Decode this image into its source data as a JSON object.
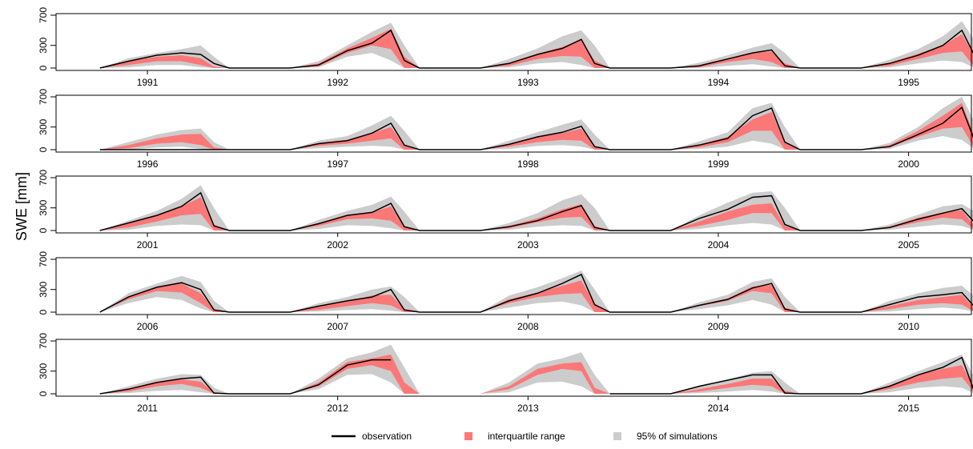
{
  "ylabel": "SWE [mm]",
  "legend": [
    {
      "name": "observation",
      "color": "#000000"
    },
    {
      "name": "interquartile range",
      "color": "#fc7777"
    },
    {
      "name": "95% of simulations",
      "color": "#cccccc"
    }
  ],
  "chart_data": [
    {
      "type": "area",
      "xlim": [
        1990.52,
        1995.33
      ],
      "ylim": [
        0,
        700
      ],
      "yticks": [
        0,
        300,
        700
      ],
      "xticks": [
        1991,
        1992,
        1993,
        1994,
        1995
      ],
      "x": [
        1990.75,
        1990.9,
        1991.05,
        1991.18,
        1991.28,
        1991.35,
        1991.43,
        1991.75,
        1991.9,
        1992.05,
        1992.18,
        1992.28,
        1992.35,
        1992.43,
        1992.75,
        1992.9,
        1993.05,
        1993.18,
        1993.28,
        1993.35,
        1993.43,
        1993.75,
        1993.9,
        1994.05,
        1994.18,
        1994.28,
        1994.35,
        1994.43,
        1994.75,
        1994.9,
        1995.05,
        1995.18,
        1995.28,
        1995.35,
        1995.43
      ],
      "observation": [
        0,
        90,
        170,
        200,
        180,
        60,
        0,
        0,
        40,
        230,
        330,
        500,
        100,
        0,
        0,
        60,
        180,
        260,
        380,
        60,
        0,
        0,
        30,
        120,
        200,
        240,
        30,
        0,
        0,
        60,
        170,
        300,
        500,
        150,
        0
      ],
      "iqr": {
        "lower": [
          0,
          40,
          90,
          90,
          40,
          0,
          0,
          0,
          20,
          200,
          300,
          250,
          0,
          0,
          0,
          30,
          120,
          160,
          150,
          0,
          0,
          0,
          10,
          80,
          120,
          80,
          0,
          0,
          0,
          30,
          120,
          200,
          220,
          0,
          0
        ],
        "upper": [
          0,
          90,
          150,
          170,
          130,
          20,
          0,
          0,
          60,
          260,
          400,
          520,
          150,
          0,
          0,
          70,
          190,
          280,
          380,
          100,
          0,
          0,
          40,
          130,
          200,
          220,
          60,
          0,
          0,
          70,
          190,
          300,
          450,
          150,
          0
        ]
      },
      "p95": {
        "lower": [
          0,
          10,
          40,
          40,
          10,
          0,
          0,
          0,
          10,
          150,
          200,
          100,
          0,
          0,
          0,
          10,
          60,
          80,
          40,
          0,
          0,
          0,
          0,
          30,
          50,
          20,
          0,
          0,
          0,
          10,
          60,
          100,
          80,
          0,
          0
        ],
        "upper": [
          0,
          130,
          200,
          250,
          300,
          150,
          0,
          0,
          90,
          300,
          480,
          600,
          300,
          0,
          0,
          120,
          260,
          420,
          500,
          300,
          0,
          0,
          70,
          170,
          270,
          330,
          200,
          0,
          0,
          110,
          250,
          420,
          620,
          350,
          0
        ]
      }
    },
    {
      "type": "area",
      "xlim": [
        1995.52,
        2000.33
      ],
      "ylim": [
        0,
        700
      ],
      "yticks": [
        0,
        300,
        700
      ],
      "xticks": [
        1996,
        1997,
        1998,
        1999,
        2000
      ],
      "x": [
        1995.75,
        1995.9,
        1996.05,
        1996.18,
        1996.28,
        1996.35,
        1996.43,
        1996.75,
        1996.9,
        1997.05,
        1997.18,
        1997.28,
        1997.35,
        1997.43,
        1997.75,
        1997.9,
        1998.05,
        1998.18,
        1998.28,
        1998.35,
        1998.43,
        1998.75,
        1998.9,
        1999.05,
        1999.18,
        1999.28,
        1999.35,
        1999.43,
        1999.75,
        1999.9,
        2000.05,
        2000.18,
        2000.28,
        2000.35,
        2000.43
      ],
      "observation": [
        0,
        0,
        0,
        0,
        0,
        0,
        0,
        0,
        80,
        120,
        220,
        350,
        60,
        0,
        0,
        70,
        170,
        230,
        310,
        40,
        0,
        0,
        60,
        150,
        450,
        550,
        100,
        0,
        0,
        40,
        200,
        350,
        560,
        100,
        0
      ],
      "iqr": {
        "lower": [
          0,
          20,
          80,
          100,
          60,
          0,
          0,
          0,
          50,
          80,
          120,
          150,
          0,
          0,
          0,
          40,
          100,
          130,
          120,
          0,
          0,
          0,
          30,
          100,
          250,
          250,
          0,
          0,
          0,
          30,
          170,
          280,
          300,
          0,
          0
        ],
        "upper": [
          0,
          60,
          150,
          200,
          210,
          30,
          0,
          0,
          90,
          130,
          220,
          300,
          60,
          0,
          0,
          80,
          170,
          220,
          280,
          50,
          0,
          0,
          70,
          170,
          400,
          500,
          100,
          0,
          0,
          60,
          250,
          450,
          620,
          150,
          0
        ]
      },
      "p95": {
        "lower": [
          0,
          0,
          30,
          40,
          10,
          0,
          0,
          0,
          20,
          40,
          50,
          40,
          0,
          0,
          0,
          10,
          50,
          60,
          40,
          0,
          0,
          0,
          10,
          40,
          120,
          80,
          0,
          0,
          0,
          10,
          120,
          180,
          130,
          0,
          0
        ],
        "upper": [
          0,
          100,
          200,
          260,
          280,
          100,
          0,
          0,
          120,
          180,
          320,
          450,
          250,
          0,
          0,
          120,
          230,
          330,
          400,
          200,
          0,
          0,
          110,
          230,
          550,
          620,
          300,
          0,
          0,
          90,
          300,
          550,
          700,
          350,
          0
        ]
      }
    },
    {
      "type": "area",
      "xlim": [
        2000.52,
        2005.33
      ],
      "ylim": [
        0,
        700
      ],
      "yticks": [
        0,
        300,
        700
      ],
      "xticks": [
        2001,
        2002,
        2003,
        2004,
        2005
      ],
      "x": [
        2000.75,
        2000.9,
        2001.05,
        2001.18,
        2001.28,
        2001.35,
        2001.43,
        2001.75,
        2001.9,
        2002.05,
        2002.18,
        2002.28,
        2002.35,
        2002.43,
        2002.75,
        2002.9,
        2003.05,
        2003.18,
        2003.28,
        2003.35,
        2003.43,
        2003.75,
        2003.9,
        2004.05,
        2004.18,
        2004.28,
        2004.35,
        2004.43,
        2004.75,
        2004.9,
        2005.05,
        2005.18,
        2005.28,
        2005.35,
        2005.43
      ],
      "observation": [
        0,
        100,
        200,
        320,
        500,
        60,
        0,
        0,
        90,
        200,
        240,
        360,
        50,
        0,
        0,
        50,
        130,
        250,
        330,
        40,
        0,
        0,
        160,
        280,
        440,
        460,
        80,
        0,
        0,
        40,
        150,
        230,
        290,
        100,
        0
      ],
      "iqr": {
        "lower": [
          0,
          40,
          120,
          200,
          220,
          0,
          0,
          0,
          60,
          150,
          160,
          130,
          0,
          0,
          0,
          30,
          110,
          170,
          180,
          0,
          0,
          0,
          60,
          140,
          230,
          230,
          0,
          0,
          0,
          30,
          110,
          170,
          150,
          0,
          0
        ],
        "upper": [
          0,
          90,
          200,
          320,
          440,
          80,
          0,
          0,
          100,
          200,
          240,
          320,
          60,
          0,
          0,
          60,
          160,
          280,
          350,
          60,
          0,
          0,
          120,
          250,
          340,
          360,
          60,
          0,
          0,
          50,
          170,
          240,
          270,
          50,
          0
        ]
      },
      "p95": {
        "lower": [
          0,
          10,
          60,
          80,
          70,
          0,
          0,
          0,
          20,
          70,
          60,
          30,
          0,
          0,
          0,
          10,
          50,
          70,
          60,
          0,
          0,
          0,
          20,
          70,
          100,
          80,
          0,
          0,
          0,
          10,
          50,
          80,
          60,
          0,
          0
        ],
        "upper": [
          0,
          130,
          260,
          420,
          600,
          300,
          0,
          0,
          140,
          260,
          340,
          450,
          250,
          0,
          0,
          100,
          230,
          400,
          480,
          300,
          0,
          0,
          200,
          370,
          500,
          520,
          300,
          0,
          0,
          80,
          210,
          320,
          350,
          250,
          0
        ]
      }
    },
    {
      "type": "area",
      "xlim": [
        2005.52,
        2010.33
      ],
      "ylim": [
        0,
        700
      ],
      "yticks": [
        0,
        300,
        700
      ],
      "xticks": [
        2006,
        2007,
        2008,
        2009,
        2010
      ],
      "x": [
        2005.75,
        2005.9,
        2006.05,
        2006.18,
        2006.28,
        2006.35,
        2006.43,
        2006.75,
        2006.9,
        2007.05,
        2007.18,
        2007.28,
        2007.35,
        2007.43,
        2007.75,
        2007.9,
        2008.05,
        2008.18,
        2008.28,
        2008.35,
        2008.43,
        2008.75,
        2008.9,
        2009.05,
        2009.18,
        2009.28,
        2009.35,
        2009.43,
        2009.75,
        2009.9,
        2010.05,
        2010.18,
        2010.28,
        2010.35,
        2010.43
      ],
      "observation": [
        0,
        200,
        330,
        390,
        300,
        30,
        0,
        0,
        80,
        150,
        200,
        300,
        30,
        0,
        0,
        150,
        250,
        380,
        500,
        100,
        0,
        0,
        90,
        170,
        320,
        380,
        40,
        0,
        0,
        100,
        200,
        230,
        260,
        60,
        0
      ],
      "iqr": {
        "lower": [
          0,
          170,
          280,
          260,
          120,
          0,
          0,
          0,
          30,
          80,
          120,
          90,
          0,
          0,
          0,
          120,
          200,
          240,
          250,
          0,
          0,
          0,
          80,
          150,
          280,
          250,
          0,
          0,
          0,
          40,
          100,
          120,
          100,
          0,
          0
        ],
        "upper": [
          0,
          210,
          330,
          380,
          250,
          40,
          0,
          0,
          80,
          140,
          220,
          230,
          40,
          0,
          0,
          170,
          260,
          350,
          420,
          100,
          0,
          0,
          100,
          180,
          340,
          360,
          60,
          0,
          0,
          80,
          160,
          200,
          230,
          40,
          0
        ]
      },
      "p95": {
        "lower": [
          0,
          120,
          200,
          160,
          50,
          0,
          0,
          0,
          10,
          30,
          40,
          20,
          0,
          0,
          0,
          60,
          120,
          140,
          90,
          0,
          0,
          0,
          40,
          90,
          160,
          100,
          0,
          0,
          0,
          10,
          40,
          60,
          40,
          0,
          0
        ],
        "upper": [
          0,
          250,
          380,
          480,
          400,
          150,
          0,
          0,
          120,
          200,
          300,
          340,
          200,
          0,
          0,
          220,
          330,
          450,
          550,
          300,
          0,
          0,
          130,
          230,
          400,
          450,
          200,
          0,
          0,
          150,
          250,
          320,
          350,
          200,
          0
        ]
      }
    },
    {
      "type": "area",
      "xlim": [
        2010.52,
        2015.33
      ],
      "ylim": [
        0,
        700
      ],
      "yticks": [
        0,
        300,
        700
      ],
      "xticks": [
        2011,
        2012,
        2013,
        2014,
        2015
      ],
      "x": [
        2010.75,
        2010.9,
        2011.05,
        2011.18,
        2011.28,
        2011.35,
        2011.43,
        2011.75,
        2011.9,
        2012.05,
        2012.18,
        2012.28,
        2012.35,
        2012.43,
        2012.75,
        2012.9,
        2013.05,
        2013.18,
        2013.28,
        2013.35,
        2013.43,
        2013.75,
        2013.9,
        2014.05,
        2014.18,
        2014.28,
        2014.35,
        2014.43,
        2014.75,
        2014.9,
        2015.05,
        2015.18,
        2015.28,
        2015.35,
        2015.43
      ],
      "observation": [
        0,
        60,
        150,
        200,
        220,
        10,
        0,
        0,
        120,
        380,
        450,
        450,
        null,
        null,
        0,
        null,
        null,
        null,
        null,
        null,
        0,
        0,
        100,
        180,
        250,
        250,
        10,
        0,
        0,
        100,
        250,
        350,
        480,
        0,
        0
      ],
      "iqr": {
        "lower": [
          0,
          30,
          100,
          130,
          80,
          0,
          0,
          0,
          100,
          330,
          380,
          300,
          0,
          0,
          0,
          60,
          250,
          330,
          300,
          0,
          0,
          0,
          30,
          80,
          120,
          100,
          0,
          0,
          0,
          60,
          150,
          200,
          220,
          0,
          0
        ],
        "upper": [
          0,
          70,
          160,
          190,
          160,
          20,
          0,
          0,
          150,
          420,
          470,
          520,
          150,
          0,
          0,
          100,
          330,
          400,
          420,
          80,
          0,
          0,
          60,
          130,
          200,
          200,
          40,
          0,
          0,
          110,
          250,
          330,
          380,
          60,
          0
        ]
      },
      "p95": {
        "lower": [
          0,
          10,
          40,
          50,
          20,
          0,
          0,
          0,
          60,
          250,
          260,
          150,
          0,
          0,
          0,
          20,
          150,
          160,
          100,
          0,
          0,
          0,
          10,
          30,
          50,
          30,
          0,
          0,
          0,
          20,
          80,
          100,
          80,
          0,
          0
        ],
        "upper": [
          0,
          100,
          200,
          260,
          250,
          80,
          0,
          0,
          200,
          470,
          550,
          650,
          350,
          0,
          0,
          150,
          400,
          470,
          550,
          250,
          0,
          0,
          110,
          190,
          280,
          300,
          150,
          0,
          0,
          150,
          300,
          420,
          520,
          200,
          0
        ]
      }
    }
  ]
}
